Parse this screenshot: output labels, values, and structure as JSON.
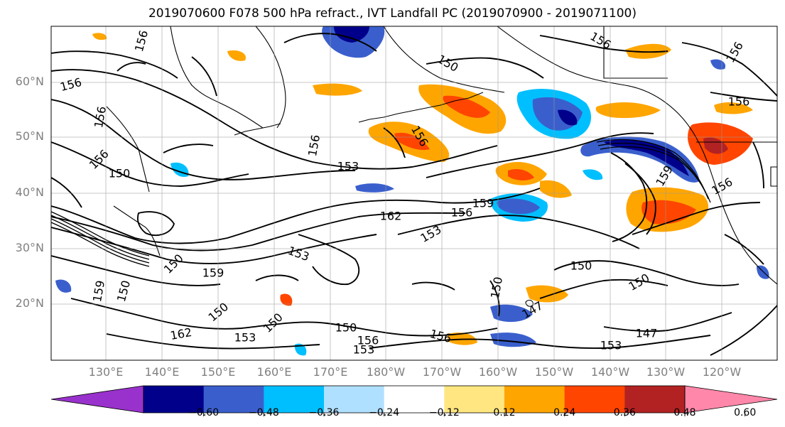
{
  "title": "2019070600 F078 500 hPa refract., IVT Landfall PC (2019070900 - 2019071100)",
  "map": {
    "lat_labels": [
      "60°N",
      "50°N",
      "40°N",
      "30°N",
      "20°N"
    ],
    "lon_labels": [
      "130°E",
      "140°E",
      "150°E",
      "160°E",
      "170°E",
      "180°W",
      "170°W",
      "160°W",
      "150°W",
      "140°W",
      "130°W",
      "120°W"
    ],
    "contour_labels": [
      "156",
      "156",
      "156",
      "156",
      "153",
      "150",
      "156",
      "150",
      "156",
      "159",
      "156",
      "156",
      "153",
      "162",
      "159",
      "153",
      "150",
      "150",
      "162",
      "159",
      "150",
      "153",
      "150",
      "150",
      "153",
      "156",
      "156",
      "147",
      "147",
      "156",
      "156",
      "150",
      "150",
      "150",
      "153",
      "159",
      "156"
    ],
    "colors": {
      "pos": [
        "#ffe680",
        "#ffa500",
        "#ff4500",
        "#b22222"
      ],
      "neg": [
        "#b0e0ff",
        "#00bfff",
        "#3a5fcd",
        "#00008b"
      ],
      "contour": "#000000",
      "land": "#000000"
    }
  },
  "colorbar": {
    "ticks": [
      "−0.60",
      "−0.48",
      "−0.36",
      "−0.24",
      "−0.12",
      "0.12",
      "0.24",
      "0.36",
      "0.48",
      "0.60"
    ],
    "colors": [
      "#9932cc",
      "#00008b",
      "#3a5fcd",
      "#00bfff",
      "#b0e0ff",
      "#ffffff",
      "#ffe680",
      "#ffa500",
      "#ff4500",
      "#b22222",
      "#ff88aa"
    ]
  }
}
